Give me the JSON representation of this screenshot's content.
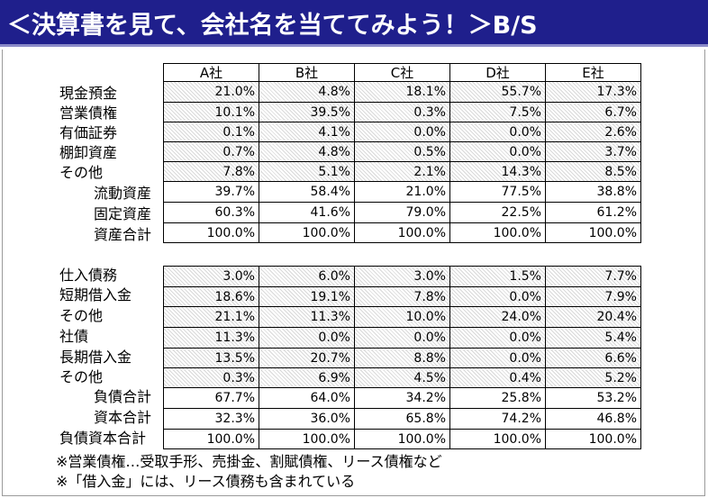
{
  "title": "＜決算書を見て、会社名を当ててみよう！＞B/S",
  "columns": [
    "A社",
    "B社",
    "C社",
    "D社",
    "E社"
  ],
  "assets": [
    {
      "label": "現金預金",
      "values": [
        "21.0%",
        "4.8%",
        "18.1%",
        "55.7%",
        "17.3%"
      ]
    },
    {
      "label": "営業債権",
      "values": [
        "10.1%",
        "39.5%",
        "0.3%",
        "7.5%",
        "6.7%"
      ]
    },
    {
      "label": "有価証券",
      "values": [
        "0.1%",
        "4.1%",
        "0.0%",
        "0.0%",
        "2.6%"
      ]
    },
    {
      "label": "棚卸資産",
      "values": [
        "0.7%",
        "4.8%",
        "0.5%",
        "0.0%",
        "3.7%"
      ]
    },
    {
      "label": "その他",
      "values": [
        "7.8%",
        "5.1%",
        "2.1%",
        "14.3%",
        "8.5%"
      ]
    },
    {
      "label": "流動資産",
      "values": [
        "39.7%",
        "58.4%",
        "21.0%",
        "77.5%",
        "38.8%"
      ]
    },
    {
      "label": "固定資産",
      "values": [
        "60.3%",
        "41.6%",
        "79.0%",
        "22.5%",
        "61.2%"
      ]
    },
    {
      "label": "資産合計",
      "values": [
        "100.0%",
        "100.0%",
        "100.0%",
        "100.0%",
        "100.0%"
      ]
    }
  ],
  "liabilities": [
    {
      "label": "仕入債務",
      "values": [
        "3.0%",
        "6.0%",
        "3.0%",
        "1.5%",
        "7.7%"
      ]
    },
    {
      "label": "短期借入金",
      "values": [
        "18.6%",
        "19.1%",
        "7.8%",
        "0.0%",
        "7.9%"
      ]
    },
    {
      "label": "その他",
      "values": [
        "21.1%",
        "11.3%",
        "10.0%",
        "24.0%",
        "20.4%"
      ]
    },
    {
      "label": "社債",
      "values": [
        "11.3%",
        "0.0%",
        "0.0%",
        "0.0%",
        "5.4%"
      ]
    },
    {
      "label": "長期借入金",
      "values": [
        "13.5%",
        "20.7%",
        "8.8%",
        "0.0%",
        "6.6%"
      ]
    },
    {
      "label": "その他",
      "values": [
        "0.3%",
        "6.9%",
        "4.5%",
        "0.4%",
        "5.2%"
      ]
    },
    {
      "label": "負債合計",
      "values": [
        "67.7%",
        "64.0%",
        "34.2%",
        "25.8%",
        "53.2%"
      ]
    },
    {
      "label": "資本合計",
      "values": [
        "32.3%",
        "36.0%",
        "65.8%",
        "74.2%",
        "46.8%"
      ]
    },
    {
      "label": "負債資本合計",
      "values": [
        "100.0%",
        "100.0%",
        "100.0%",
        "100.0%",
        "100.0%"
      ]
    }
  ],
  "notes": [
    "※営業債権…受取手形、売掛金、割賦債権、リース債権など",
    "※「借入金」には、リース債務も含まれている"
  ]
}
